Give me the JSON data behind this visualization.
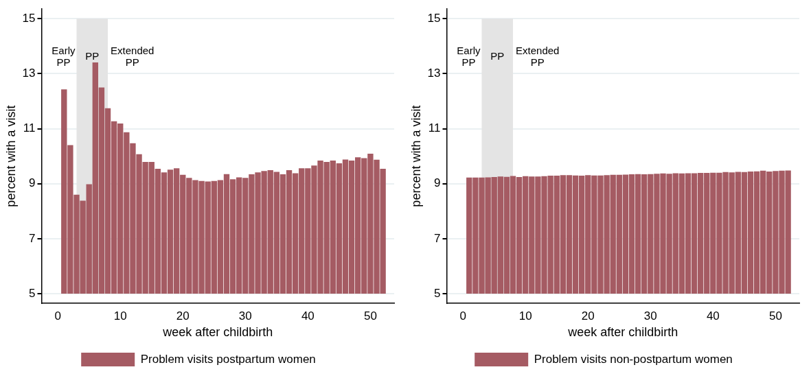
{
  "chart_data": [
    {
      "type": "bar",
      "xlabel": "week after childbirth",
      "ylabel": "percent with a visit",
      "x": [
        1,
        2,
        3,
        4,
        5,
        6,
        7,
        8,
        9,
        10,
        11,
        12,
        13,
        14,
        15,
        16,
        17,
        18,
        19,
        20,
        21,
        22,
        23,
        24,
        25,
        26,
        27,
        28,
        29,
        30,
        31,
        32,
        33,
        34,
        35,
        36,
        37,
        38,
        39,
        40,
        41,
        42,
        43,
        44,
        45,
        46,
        47,
        48,
        49,
        50,
        51,
        52
      ],
      "series": [
        {
          "name": "Problem visits postpartum women",
          "color": "#a55b63",
          "base": [
            5,
            5,
            5,
            5,
            5,
            5,
            5,
            5,
            5,
            5,
            5,
            5,
            5,
            5,
            5,
            5,
            5,
            5,
            5,
            5,
            5,
            5,
            5,
            5,
            5,
            5,
            5,
            5,
            5,
            5,
            5,
            5,
            5,
            5,
            5,
            5,
            5,
            5,
            5,
            5,
            5,
            5,
            5,
            5,
            5,
            5,
            5,
            5,
            5,
            5,
            5,
            5
          ],
          "values": [
            7.43,
            5.4,
            3.6,
            3.38,
            3.98,
            8.41,
            7.5,
            6.74,
            6.27,
            6.19,
            5.87,
            5.47,
            5.07,
            4.79,
            4.79,
            4.54,
            4.41,
            4.51,
            4.56,
            4.32,
            4.21,
            4.13,
            4.1,
            4.08,
            4.1,
            4.13,
            4.35,
            4.16,
            4.23,
            4.21,
            4.34,
            4.41,
            4.46,
            4.49,
            4.43,
            4.34,
            4.49,
            4.38,
            4.56,
            4.56,
            4.66,
            4.84,
            4.79,
            4.84,
            4.74,
            4.88,
            4.84,
            4.96,
            4.93,
            5.09,
            4.87,
            4.54
          ]
        }
      ],
      "xlim": [
        -2.6,
        53.8
      ],
      "xticks": [
        0,
        10,
        20,
        30,
        40,
        50
      ],
      "ylim": [
        4.65,
        15.35
      ],
      "yticks": [
        5,
        7,
        9,
        11,
        13,
        15
      ],
      "grid": "y",
      "legend": "bottom",
      "bands": [
        {
          "axis": "x",
          "from": 3,
          "to": 8,
          "color": "#e4e4e4"
        }
      ],
      "annotations": [
        "Early PP",
        "PP",
        "Extended PP"
      ]
    },
    {
      "type": "bar",
      "xlabel": "week after childbirth",
      "ylabel": "percent with a visit",
      "x": [
        1,
        2,
        3,
        4,
        5,
        6,
        7,
        8,
        9,
        10,
        11,
        12,
        13,
        14,
        15,
        16,
        17,
        18,
        19,
        20,
        21,
        22,
        23,
        24,
        25,
        26,
        27,
        28,
        29,
        30,
        31,
        32,
        33,
        34,
        35,
        36,
        37,
        38,
        39,
        40,
        41,
        42,
        43,
        44,
        45,
        46,
        47,
        48,
        49,
        50,
        51,
        52
      ],
      "series": [
        {
          "name": "Problem visits non-postpartum women",
          "color": "#a55b63",
          "base": [
            5,
            5,
            5,
            5,
            5,
            5,
            5,
            5,
            5,
            5,
            5,
            5,
            5,
            5,
            5,
            5,
            5,
            5,
            5,
            5,
            5,
            5,
            5,
            5,
            5,
            5,
            5,
            5,
            5,
            5,
            5,
            5,
            5,
            5,
            5,
            5,
            5,
            5,
            5,
            5,
            5,
            5,
            5,
            5,
            5,
            5,
            5,
            5,
            5,
            5,
            5,
            5
          ],
          "values": [
            4.22,
            4.22,
            4.22,
            4.23,
            4.24,
            4.26,
            4.25,
            4.28,
            4.24,
            4.27,
            4.26,
            4.26,
            4.27,
            4.29,
            4.29,
            4.31,
            4.31,
            4.3,
            4.29,
            4.31,
            4.3,
            4.3,
            4.31,
            4.32,
            4.32,
            4.33,
            4.34,
            4.35,
            4.34,
            4.35,
            4.36,
            4.37,
            4.36,
            4.38,
            4.37,
            4.38,
            4.38,
            4.39,
            4.39,
            4.4,
            4.4,
            4.42,
            4.41,
            4.43,
            4.42,
            4.44,
            4.45,
            4.47,
            4.44,
            4.46,
            4.47,
            4.48
          ]
        }
      ],
      "xlim": [
        -2.6,
        53.8
      ],
      "xticks": [
        0,
        10,
        20,
        30,
        40,
        50
      ],
      "ylim": [
        4.65,
        15.35
      ],
      "yticks": [
        5,
        7,
        9,
        11,
        13,
        15
      ],
      "grid": "y",
      "legend": "bottom",
      "bands": [
        {
          "axis": "x",
          "from": 3,
          "to": 8,
          "color": "#e4e4e4"
        }
      ],
      "annotations": [
        "Early PP",
        "PP",
        "Extended PP"
      ]
    }
  ]
}
